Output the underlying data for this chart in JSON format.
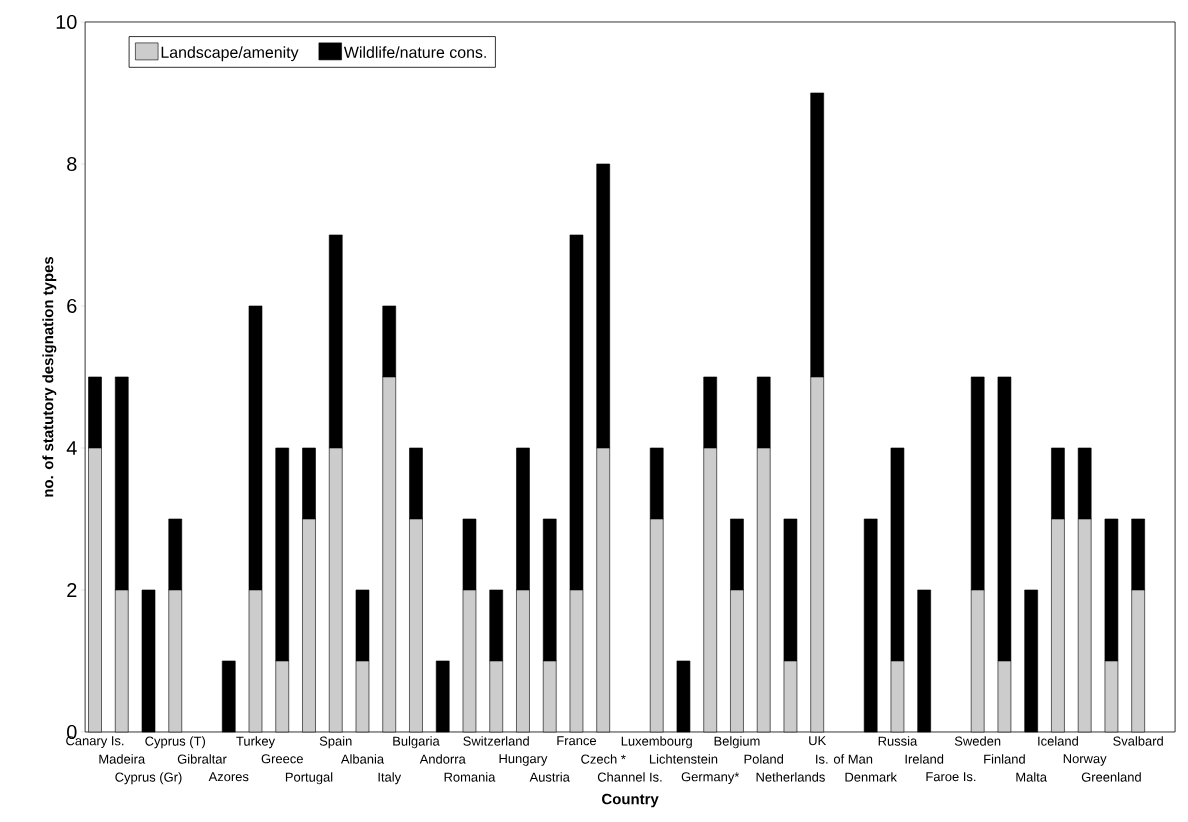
{
  "chart_data": {
    "type": "bar",
    "stacked": true,
    "xlabel": "Country",
    "ylabel": "no. of statutory designation types",
    "categories": [
      "Canary Is.",
      "Madeira",
      "Cyprus (Gr)",
      "Cyprus (T)",
      "Gibraltar",
      "Azores",
      "Turkey",
      "Greece",
      "Portugal",
      "Spain",
      "Albania",
      "Italy",
      "Bulgaria",
      "Andorra",
      "Romania",
      "Switzerland",
      "Hungary",
      "Austria",
      "France",
      "Czech *",
      "Channel Is.",
      "Luxembourg",
      "Lichtenstein",
      "Germany*",
      "Belgium",
      "Poland",
      "Netherlands",
      "UK",
      "Is. of Man",
      "Denmark",
      "Russia",
      "Ireland",
      "Faroe Is.",
      "Sweden",
      "Finland",
      "Malta",
      "Iceland",
      "Norway",
      "Greenland",
      "Svalbard"
    ],
    "series": [
      {
        "name": "Landscape/amenity",
        "color": "#cccccc",
        "values": [
          4,
          2,
          0,
          2,
          0,
          0,
          2,
          1,
          3,
          4,
          1,
          5,
          3,
          0,
          2,
          1,
          2,
          1,
          2,
          4,
          0,
          3,
          0,
          4,
          2,
          4,
          1,
          5,
          0,
          0,
          1,
          0,
          0,
          2,
          1,
          0,
          3,
          3,
          1,
          2
        ]
      },
      {
        "name": "Wildlife/nature cons.",
        "color": "#000000",
        "values": [
          1,
          3,
          2,
          1,
          0,
          1,
          4,
          3,
          1,
          3,
          1,
          1,
          1,
          1,
          1,
          1,
          2,
          2,
          5,
          4,
          0,
          1,
          1,
          1,
          1,
          1,
          2,
          4,
          0,
          3,
          3,
          2,
          0,
          3,
          4,
          2,
          1,
          1,
          2,
          1
        ]
      }
    ],
    "ylim": [
      0,
      10
    ],
    "yticks": [
      0,
      2,
      4,
      6,
      8,
      10
    ],
    "grid": false,
    "legend": "top left"
  }
}
